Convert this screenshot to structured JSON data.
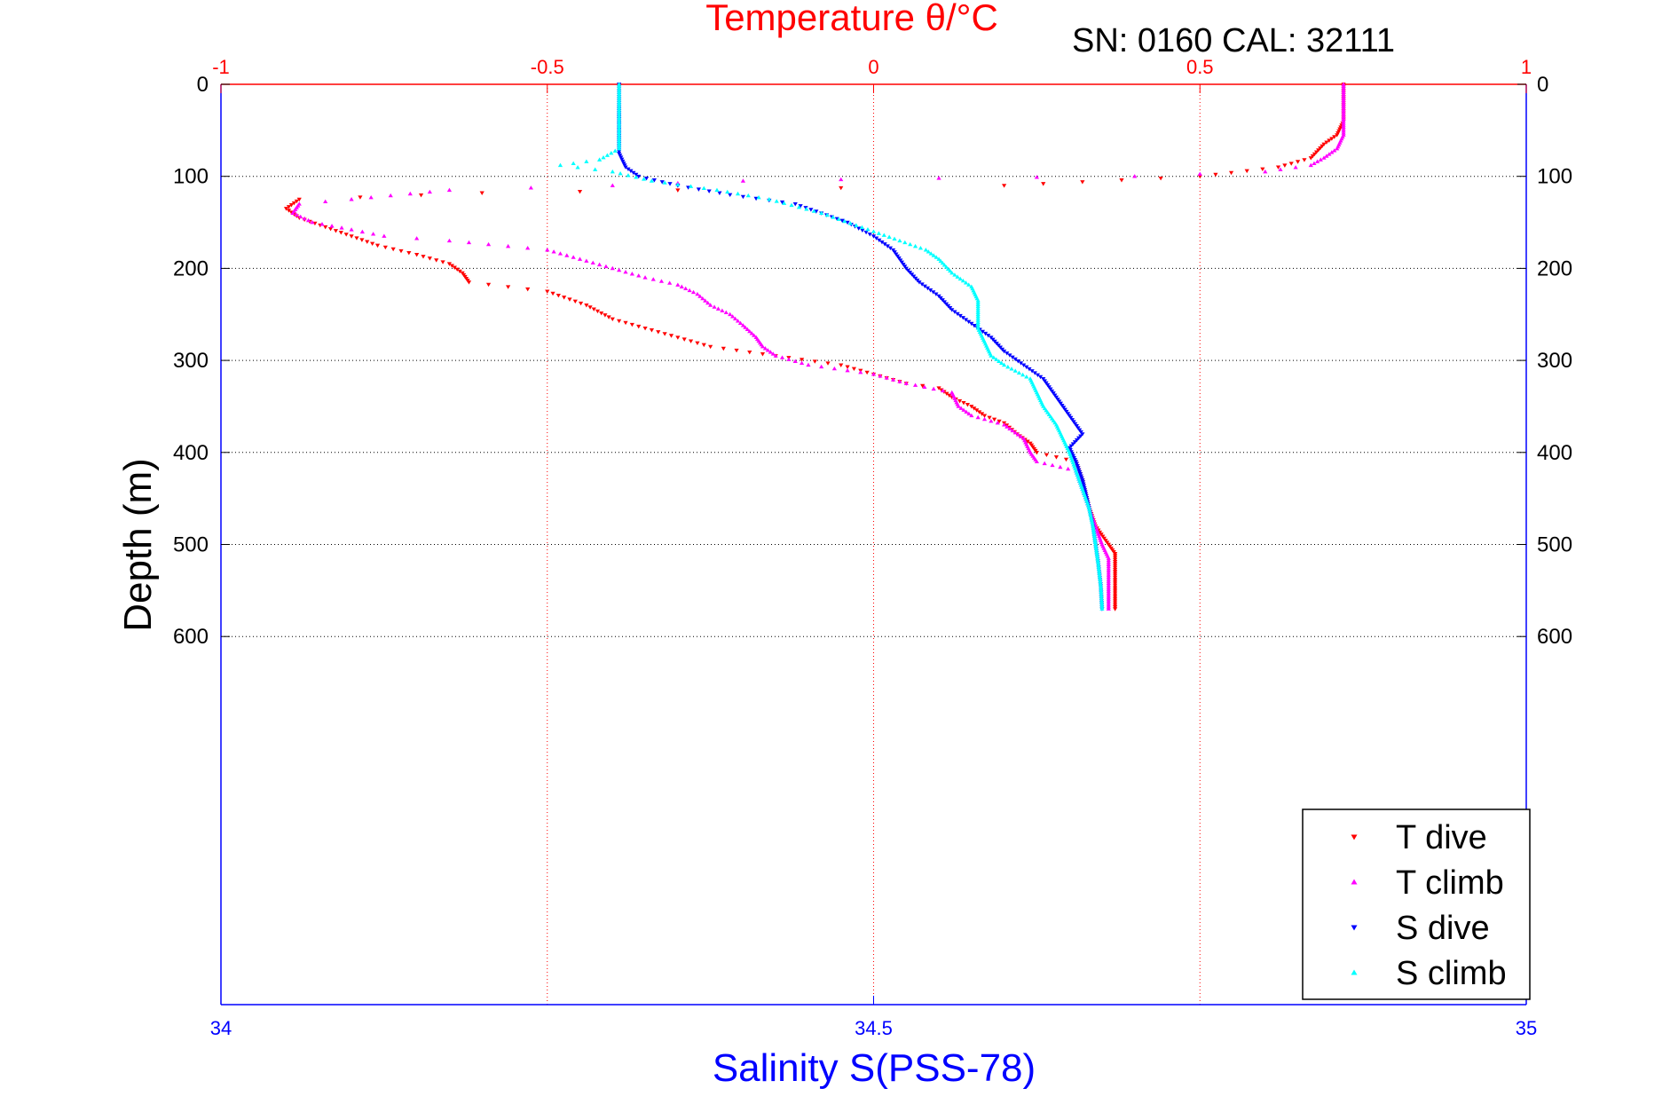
{
  "chart_data": {
    "type": "scatter",
    "title": "Temperature θ/°C",
    "subtitle": "SN: 0160  CAL: 32111",
    "xlabel": "Salinity S(PSS-78)",
    "ylabel": "Depth (m)",
    "top_axis": {
      "label": "Temperature θ/°C",
      "range": [
        -1,
        1
      ],
      "ticks": [
        "-1",
        "-0.5",
        "0",
        "0.5",
        "1"
      ],
      "color": "#ff0000"
    },
    "bottom_axis": {
      "label": "Salinity S(PSS-78)",
      "range": [
        34,
        35
      ],
      "ticks": [
        "34",
        "34.5",
        "35"
      ],
      "color": "#0000ff"
    },
    "y_axis": {
      "range": [
        0,
        1000
      ],
      "reversed": true,
      "ticks": [
        "0",
        "100",
        "200",
        "300",
        "400",
        "500",
        "600"
      ],
      "tick_values": [
        0,
        100,
        200,
        300,
        400,
        500,
        600
      ]
    },
    "grid": true,
    "legend_position": "bottom-right",
    "series": [
      {
        "name": "T dive",
        "axis": "top",
        "marker": "triangle-down",
        "color": "#ff0000",
        "points": [
          [
            0.72,
            0
          ],
          [
            0.72,
            20
          ],
          [
            0.72,
            40
          ],
          [
            0.71,
            55
          ],
          [
            0.69,
            65
          ],
          [
            0.67,
            80
          ],
          [
            0.62,
            90
          ],
          [
            0.5,
            100
          ],
          [
            0.2,
            110
          ],
          [
            -0.3,
            115
          ],
          [
            -0.6,
            118
          ],
          [
            -0.88,
            125
          ],
          [
            -0.9,
            135
          ],
          [
            -0.88,
            145
          ],
          [
            -0.84,
            155
          ],
          [
            -0.8,
            165
          ],
          [
            -0.76,
            175
          ],
          [
            -0.7,
            185
          ],
          [
            -0.65,
            195
          ],
          [
            -0.63,
            205
          ],
          [
            -0.62,
            215
          ],
          [
            -0.56,
            220
          ],
          [
            -0.5,
            225
          ],
          [
            -0.44,
            240
          ],
          [
            -0.4,
            255
          ],
          [
            -0.35,
            265
          ],
          [
            -0.3,
            275
          ],
          [
            -0.25,
            285
          ],
          [
            -0.15,
            295
          ],
          [
            -0.05,
            305
          ],
          [
            0.0,
            315
          ],
          [
            0.05,
            325
          ],
          [
            0.1,
            330
          ],
          [
            0.12,
            340
          ],
          [
            0.15,
            350
          ],
          [
            0.17,
            360
          ],
          [
            0.2,
            368
          ],
          [
            0.22,
            380
          ],
          [
            0.24,
            390
          ],
          [
            0.25,
            400
          ],
          [
            0.28,
            405
          ],
          [
            0.31,
            410
          ],
          [
            0.32,
            430
          ],
          [
            0.33,
            460
          ],
          [
            0.34,
            480
          ],
          [
            0.36,
            500
          ],
          [
            0.37,
            510
          ],
          [
            0.37,
            540
          ],
          [
            0.37,
            570
          ]
        ]
      },
      {
        "name": "T climb",
        "axis": "top",
        "marker": "triangle-up",
        "color": "#ff00ff",
        "points": [
          [
            0.36,
            570
          ],
          [
            0.36,
            540
          ],
          [
            0.36,
            515
          ],
          [
            0.35,
            500
          ],
          [
            0.34,
            480
          ],
          [
            0.33,
            460
          ],
          [
            0.32,
            440
          ],
          [
            0.31,
            420
          ],
          [
            0.25,
            410
          ],
          [
            0.24,
            400
          ],
          [
            0.23,
            385
          ],
          [
            0.2,
            370
          ],
          [
            0.15,
            360
          ],
          [
            0.13,
            350
          ],
          [
            0.12,
            335
          ],
          [
            0.05,
            325
          ],
          [
            0.0,
            315
          ],
          [
            -0.1,
            305
          ],
          [
            -0.15,
            295
          ],
          [
            -0.17,
            285
          ],
          [
            -0.18,
            275
          ],
          [
            -0.2,
            262
          ],
          [
            -0.22,
            250
          ],
          [
            -0.25,
            240
          ],
          [
            -0.27,
            228
          ],
          [
            -0.3,
            218
          ],
          [
            -0.35,
            210
          ],
          [
            -0.4,
            200
          ],
          [
            -0.45,
            190
          ],
          [
            -0.5,
            180
          ],
          [
            -0.65,
            170
          ],
          [
            -0.75,
            165
          ],
          [
            -0.8,
            158
          ],
          [
            -0.86,
            150
          ],
          [
            -0.89,
            140
          ],
          [
            -0.88,
            130
          ],
          [
            -0.8,
            125
          ],
          [
            -0.65,
            115
          ],
          [
            -0.4,
            110
          ],
          [
            -0.2,
            105
          ],
          [
            0.1,
            102
          ],
          [
            0.4,
            100
          ],
          [
            0.6,
            95
          ],
          [
            0.67,
            88
          ],
          [
            0.69,
            80
          ],
          [
            0.71,
            70
          ],
          [
            0.72,
            55
          ],
          [
            0.72,
            40
          ],
          [
            0.72,
            20
          ],
          [
            0.72,
            0
          ]
        ]
      },
      {
        "name": "S dive",
        "axis": "bottom",
        "marker": "triangle-down",
        "color": "#0000ff",
        "points": [
          [
            34.305,
            0
          ],
          [
            34.305,
            20
          ],
          [
            34.305,
            40
          ],
          [
            34.305,
            60
          ],
          [
            34.305,
            75
          ],
          [
            34.31,
            90
          ],
          [
            34.32,
            100
          ],
          [
            34.35,
            110
          ],
          [
            34.39,
            120
          ],
          [
            34.44,
            130
          ],
          [
            34.46,
            140
          ],
          [
            34.48,
            150
          ],
          [
            34.5,
            165
          ],
          [
            34.515,
            180
          ],
          [
            34.525,
            200
          ],
          [
            34.535,
            215
          ],
          [
            34.55,
            230
          ],
          [
            34.56,
            245
          ],
          [
            34.575,
            260
          ],
          [
            34.59,
            275
          ],
          [
            34.6,
            290
          ],
          [
            34.615,
            305
          ],
          [
            34.63,
            320
          ],
          [
            34.64,
            340
          ],
          [
            34.65,
            360
          ],
          [
            34.66,
            380
          ],
          [
            34.65,
            395
          ],
          [
            34.655,
            410
          ],
          [
            34.66,
            430
          ],
          [
            34.665,
            460
          ],
          [
            34.668,
            480
          ],
          [
            34.67,
            500
          ],
          [
            34.672,
            520
          ],
          [
            34.674,
            545
          ],
          [
            34.675,
            570
          ]
        ]
      },
      {
        "name": "S climb",
        "axis": "bottom",
        "marker": "triangle-up",
        "color": "#00ffff",
        "points": [
          [
            34.675,
            570
          ],
          [
            34.674,
            545
          ],
          [
            34.672,
            520
          ],
          [
            34.67,
            500
          ],
          [
            34.668,
            480
          ],
          [
            34.665,
            460
          ],
          [
            34.66,
            440
          ],
          [
            34.655,
            420
          ],
          [
            34.65,
            400
          ],
          [
            34.645,
            385
          ],
          [
            34.64,
            370
          ],
          [
            34.63,
            350
          ],
          [
            34.625,
            335
          ],
          [
            34.62,
            320
          ],
          [
            34.6,
            305
          ],
          [
            34.59,
            295
          ],
          [
            34.585,
            280
          ],
          [
            34.58,
            265
          ],
          [
            34.58,
            250
          ],
          [
            34.58,
            235
          ],
          [
            34.575,
            220
          ],
          [
            34.56,
            205
          ],
          [
            34.55,
            190
          ],
          [
            34.54,
            180
          ],
          [
            34.52,
            170
          ],
          [
            34.5,
            160
          ],
          [
            34.46,
            140
          ],
          [
            34.42,
            125
          ],
          [
            34.38,
            115
          ],
          [
            34.33,
            105
          ],
          [
            34.3,
            95
          ],
          [
            34.26,
            88
          ],
          [
            34.29,
            82
          ],
          [
            34.305,
            70
          ],
          [
            34.305,
            50
          ],
          [
            34.305,
            30
          ],
          [
            34.305,
            0
          ]
        ]
      }
    ]
  }
}
